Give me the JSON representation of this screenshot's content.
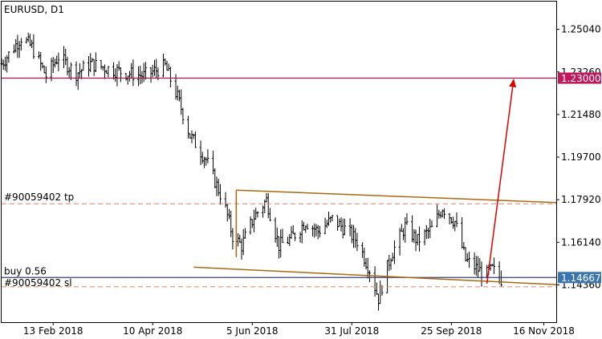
{
  "window": {
    "title": "EURUSD, D1"
  },
  "trade_labels": {
    "tp": "#90059402 tp",
    "buy": "buy 0.56",
    "sl": "#90059402 sl"
  },
  "price_tags": {
    "target": {
      "value": "1.23000",
      "color": "#c2185b"
    },
    "current": {
      "value": "1.14667",
      "color": "#3a75b0"
    }
  },
  "colors": {
    "candles": "#000000",
    "grid_border": "#000000",
    "target_line": "#b0144c",
    "buy_line": "#3b3b8f",
    "tp_sl_lines": "#e8806a",
    "channel": "#a86a10",
    "arrow": "#e00000"
  },
  "chart_data": {
    "type": "ohlc",
    "symbol": "EURUSD",
    "timeframe": "D1",
    "x_ticks": [
      "13 Feb 2018",
      "10 Apr 2018",
      "5 Jun 2018",
      "31 Jul 2018",
      "25 Sep 2018",
      "16 Nov 2018"
    ],
    "y_ticks": [
      "1.25040",
      "1.23260",
      "1.21480",
      "1.19700",
      "1.17920",
      "1.16140",
      "1.14360"
    ],
    "y_range": [
      1.128,
      1.262
    ],
    "x_range": [
      "2018-01-15",
      "2018-11-23"
    ],
    "levels": {
      "target": 1.23,
      "take_profit": 1.1775,
      "buy": 1.14667,
      "stop_loss": 1.1428
    },
    "channel": {
      "upper": [
        [
          "2018-05-27",
          1.1832
        ],
        [
          "2018-11-23",
          1.178
        ]
      ],
      "lower": [
        [
          "2018-05-03",
          1.151
        ],
        [
          "2018-11-23",
          1.1437
        ]
      ]
    },
    "arrow": {
      "from": [
        "2018-10-15",
        1.1441
      ],
      "to": [
        "2018-10-30",
        1.2293
      ]
    },
    "trend_path": [
      [
        "2018-01-15",
        1.236
      ],
      [
        "2018-01-20",
        1.241
      ],
      [
        "2018-01-26",
        1.247
      ],
      [
        "2018-02-01",
        1.243
      ],
      [
        "2018-02-09",
        1.231
      ],
      [
        "2018-02-16",
        1.239
      ],
      [
        "2018-02-26",
        1.232
      ],
      [
        "2018-03-06",
        1.236
      ],
      [
        "2018-03-16",
        1.234
      ],
      [
        "2018-03-27",
        1.232
      ],
      [
        "2018-04-05",
        1.231
      ],
      [
        "2018-04-17",
        1.235
      ],
      [
        "2018-04-24",
        1.222
      ],
      [
        "2018-05-01",
        1.206
      ],
      [
        "2018-05-10",
        1.196
      ],
      [
        "2018-05-20",
        1.178
      ],
      [
        "2018-05-25",
        1.164
      ],
      [
        "2018-05-30",
        1.16
      ],
      [
        "2018-06-06",
        1.172
      ],
      [
        "2018-06-13",
        1.179
      ],
      [
        "2018-06-20",
        1.16
      ],
      [
        "2018-06-27",
        1.163
      ],
      [
        "2018-07-05",
        1.17
      ],
      [
        "2018-07-12",
        1.166
      ],
      [
        "2018-07-20",
        1.171
      ],
      [
        "2018-07-27",
        1.167
      ],
      [
        "2018-08-03",
        1.162
      ],
      [
        "2018-08-10",
        1.15
      ],
      [
        "2018-08-15",
        1.138
      ],
      [
        "2018-08-22",
        1.156
      ],
      [
        "2018-08-30",
        1.168
      ],
      [
        "2018-09-06",
        1.162
      ],
      [
        "2018-09-14",
        1.167
      ],
      [
        "2018-09-20",
        1.176
      ],
      [
        "2018-09-27",
        1.17
      ],
      [
        "2018-10-03",
        1.154
      ],
      [
        "2018-10-10",
        1.15
      ],
      [
        "2018-10-15",
        1.148
      ],
      [
        "2018-10-18",
        1.15
      ],
      [
        "2018-10-23",
        1.146
      ]
    ]
  }
}
